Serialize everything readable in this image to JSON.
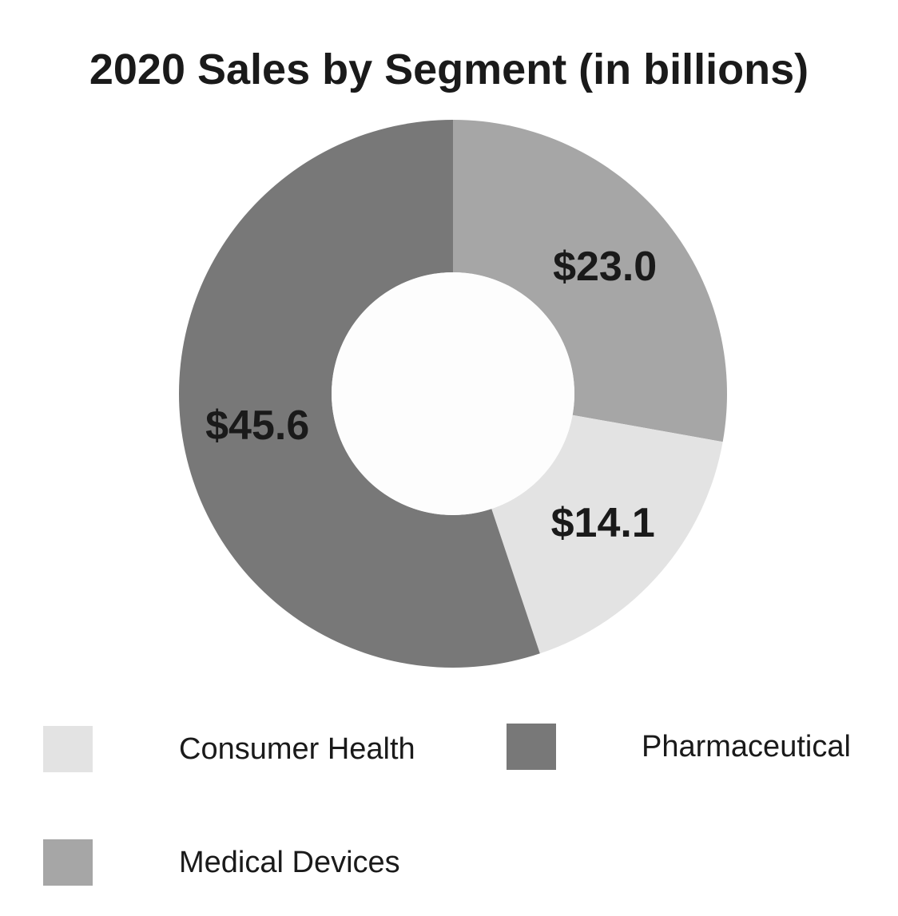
{
  "chart_data": {
    "type": "pie",
    "variant": "donut",
    "title": "2020 Sales by Segment (in billions)",
    "slices": [
      {
        "name": "Medical Devices",
        "value": 23.0,
        "label": "$23.0",
        "color": "#a6a6a6"
      },
      {
        "name": "Consumer Health",
        "value": 14.1,
        "label": "$14.1",
        "color": "#e3e3e3"
      },
      {
        "name": "Pharmaceutical",
        "value": 45.6,
        "label": "$45.6",
        "color": "#787878"
      }
    ],
    "legend": [
      {
        "name": "Consumer Health",
        "color": "#e3e3e3"
      },
      {
        "name": "Pharmaceutical",
        "color": "#787878"
      },
      {
        "name": "Medical Devices",
        "color": "#a6a6a6"
      }
    ],
    "legend_position": "bottom"
  }
}
